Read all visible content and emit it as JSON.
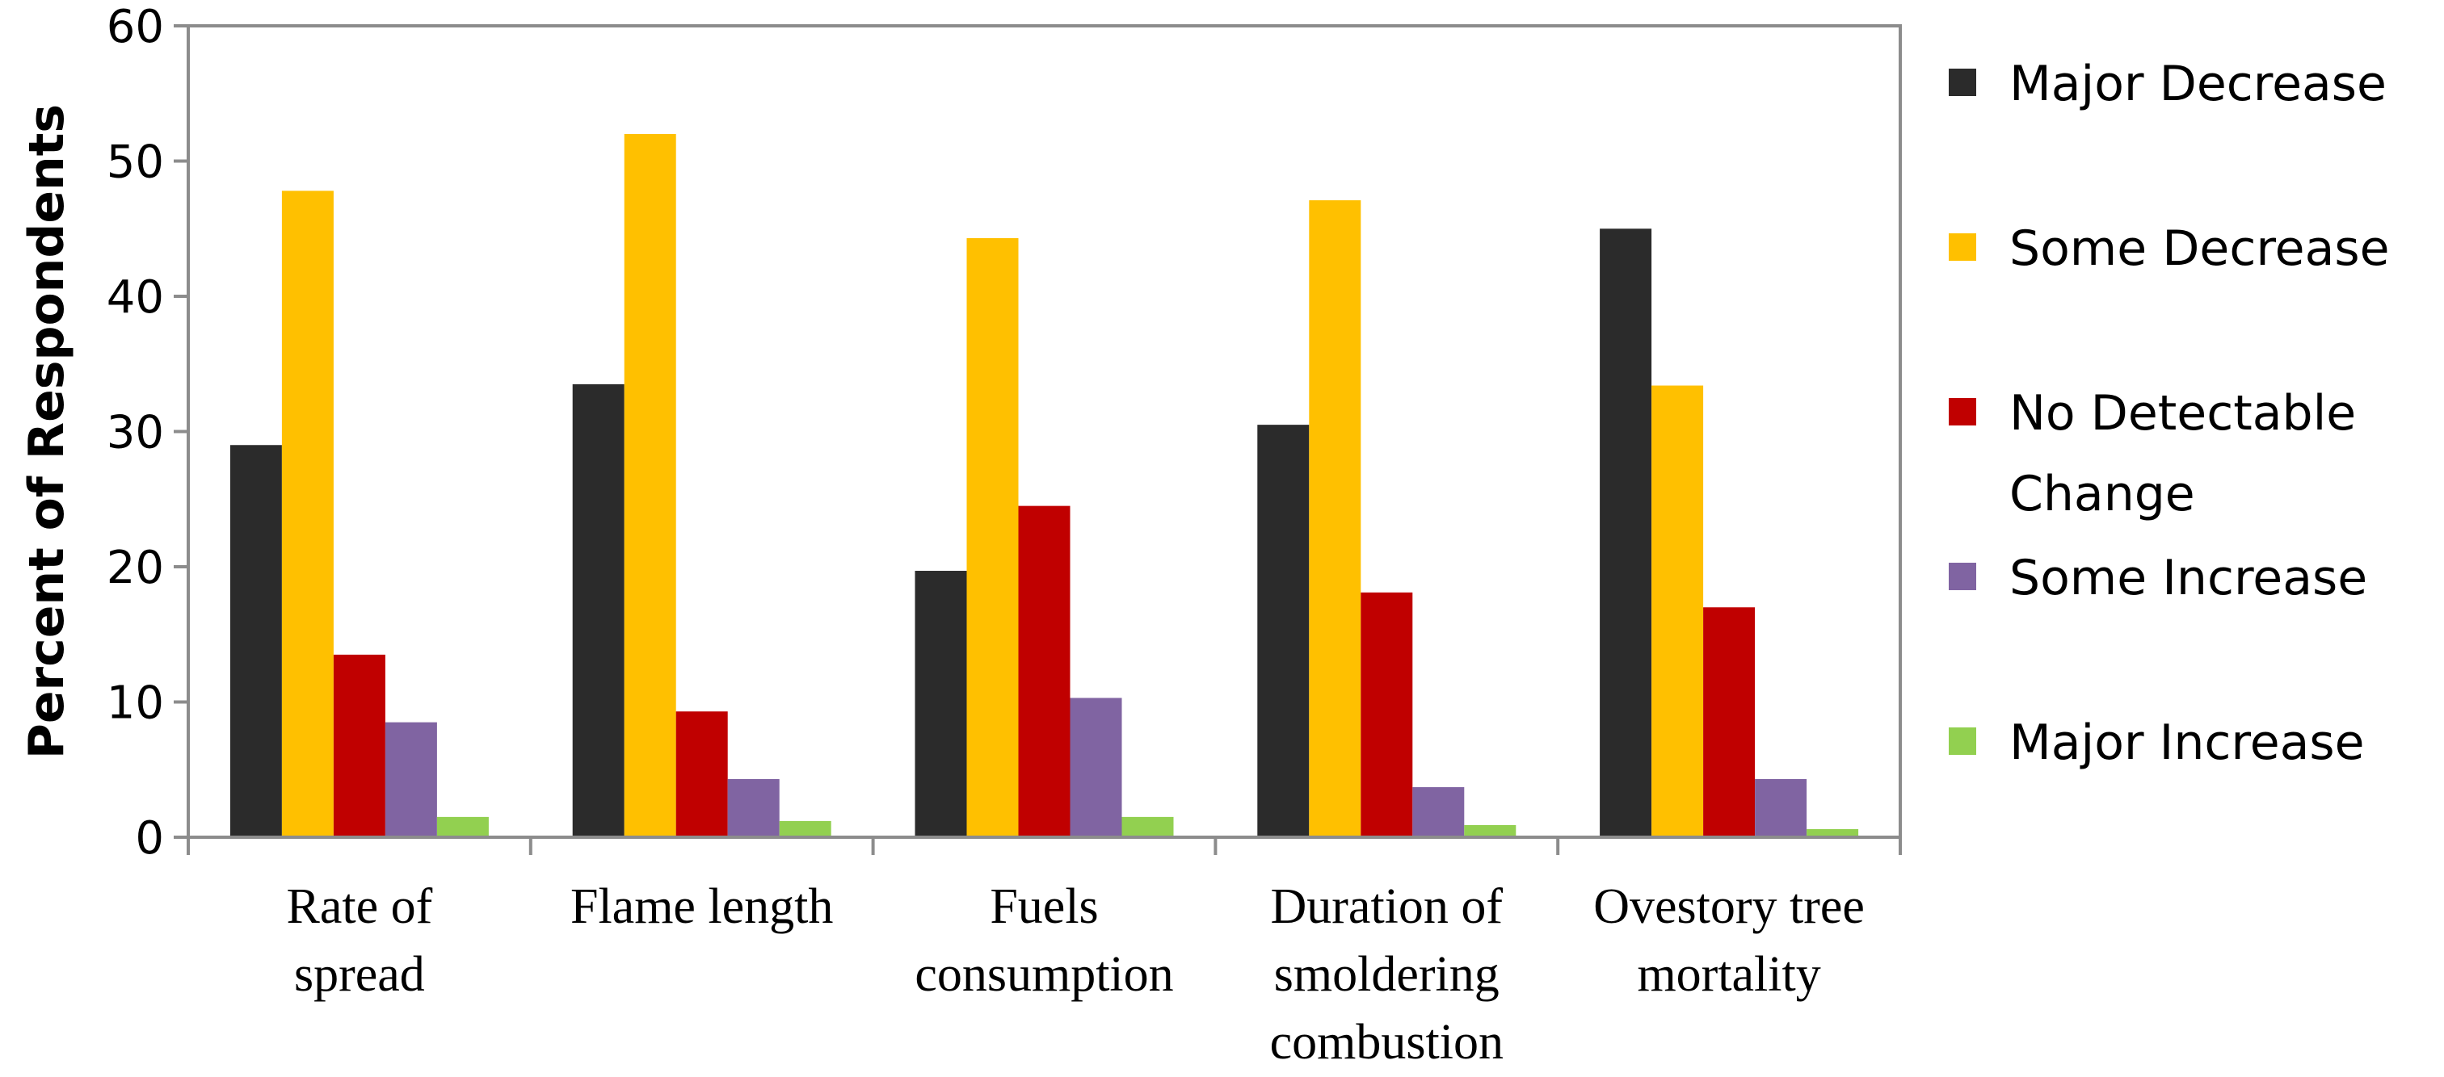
{
  "chart_data": {
    "type": "bar",
    "title": "",
    "xlabel": "",
    "ylabel": "Percent of Respondents",
    "ylim": [
      0,
      60
    ],
    "yticks": [
      0,
      10,
      20,
      30,
      40,
      50,
      60
    ],
    "grid": false,
    "legend_position": "right",
    "categories": [
      [
        "Rate of",
        "spread"
      ],
      [
        "Flame length"
      ],
      [
        "Fuels",
        "consumption"
      ],
      [
        "Duration of",
        "smoldering",
        "combustion"
      ],
      [
        "Ovestory tree",
        "mortality"
      ]
    ],
    "series": [
      {
        "name": [
          "Major Decrease"
        ],
        "color": "#2b2b2b",
        "values": [
          29.0,
          33.5,
          19.7,
          30.5,
          45.0
        ]
      },
      {
        "name": [
          "Some Decrease"
        ],
        "color": "#ffc000",
        "values": [
          47.8,
          52.0,
          44.3,
          47.1,
          33.4
        ]
      },
      {
        "name": [
          "No Detectable",
          "Change"
        ],
        "color": "#c00000",
        "values": [
          13.5,
          9.3,
          24.5,
          18.1,
          17.0
        ]
      },
      {
        "name": [
          "Some Increase"
        ],
        "color": "#8064a2",
        "values": [
          8.5,
          4.3,
          10.3,
          3.7,
          4.3
        ]
      },
      {
        "name": [
          "Major Increase"
        ],
        "color": "#92d050",
        "values": [
          1.5,
          1.2,
          1.5,
          0.9,
          0.6
        ]
      }
    ]
  }
}
